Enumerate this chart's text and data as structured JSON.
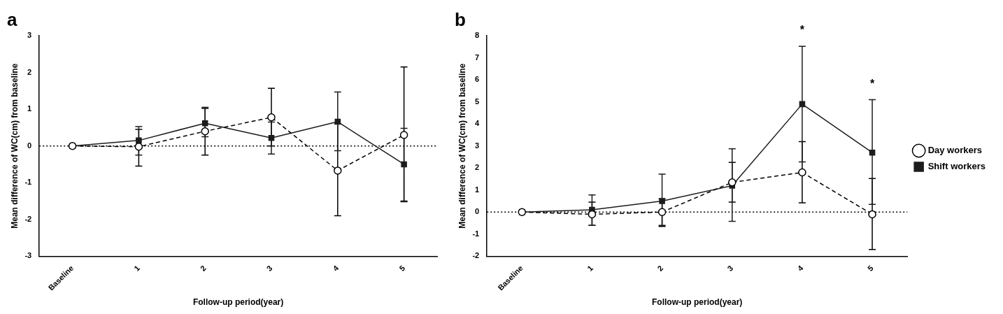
{
  "chart_data": [
    {
      "type": "line",
      "title": "a",
      "xlabel": "Follow-up period(year)",
      "ylabel": "Mean difference of WC(cm) from baseline",
      "categories": [
        "Baseline",
        "1",
        "2",
        "3",
        "4",
        "5"
      ],
      "series": [
        {
          "color": "#000000",
          "marker": "circle",
          "line_style": "dashed",
          "values": [
            0,
            -0.02,
            0.4,
            0.78,
            -0.67,
            0.3
          ],
          "errors": [
            null,
            [
              -0.55,
              0.45
            ],
            [
              -0.25,
              1.05
            ],
            [
              0,
              1.57
            ],
            [
              -1.9,
              0.6
            ],
            [
              -1.5,
              2.15
            ]
          ]
        },
        {
          "color": "#1c1c1c",
          "marker": "square",
          "line_style": "solid",
          "values": [
            0,
            0.15,
            0.62,
            0.22,
            0.66,
            -0.5
          ],
          "errors": [
            null,
            [
              -0.25,
              0.53
            ],
            [
              0.25,
              1.02
            ],
            [
              -0.22,
              0.65
            ],
            [
              -0.13,
              1.47
            ],
            [
              -1.52,
              0.48
            ]
          ]
        }
      ],
      "ylim": [
        -3,
        3
      ],
      "yticks": [
        -3,
        -2,
        -1,
        0,
        1,
        2,
        3
      ],
      "grid": false,
      "legend": false,
      "ref_lines": [
        {
          "axis": "y",
          "value": 0,
          "line_style": "dotted"
        }
      ]
    },
    {
      "type": "line",
      "title": "b",
      "xlabel": "Follow-up period(year)",
      "ylabel": "Mean difference of WC(cm) from baseline",
      "categories": [
        "Baseline",
        "1",
        "2",
        "3",
        "4",
        "5"
      ],
      "series": [
        {
          "name": "Day workers",
          "color": "#000000",
          "marker": "circle",
          "line_style": "dashed",
          "values": [
            0,
            -0.1,
            0,
            1.35,
            1.8,
            -0.1
          ],
          "errors": [
            null,
            [
              -0.6,
              0.45
            ],
            [
              -0.65,
              0.6
            ],
            [
              0.45,
              2.25
            ],
            [
              0.42,
              3.2
            ],
            [
              -1.7,
              1.52
            ]
          ]
        },
        {
          "name": "Shift workers",
          "color": "#1c1c1c",
          "marker": "square",
          "line_style": "solid",
          "values": [
            0,
            0.1,
            0.5,
            1.2,
            4.9,
            2.7
          ],
          "errors": [
            null,
            [
              -0.6,
              0.78
            ],
            [
              -0.6,
              1.72
            ],
            [
              -0.42,
              2.87
            ],
            [
              2.28,
              7.52
            ],
            [
              0.35,
              5.1
            ]
          ]
        }
      ],
      "ylim": [
        -2,
        8
      ],
      "yticks": [
        -2,
        -1,
        0,
        1,
        2,
        3,
        4,
        5,
        6,
        7,
        8
      ],
      "grid": false,
      "legend": "right",
      "ref_lines": [
        {
          "axis": "y",
          "value": 0,
          "line_style": "dotted"
        }
      ],
      "annotations": [
        {
          "text": "*",
          "x": "4",
          "y": 7.52
        },
        {
          "text": "*",
          "x": "5",
          "y": 5.1
        }
      ]
    }
  ]
}
